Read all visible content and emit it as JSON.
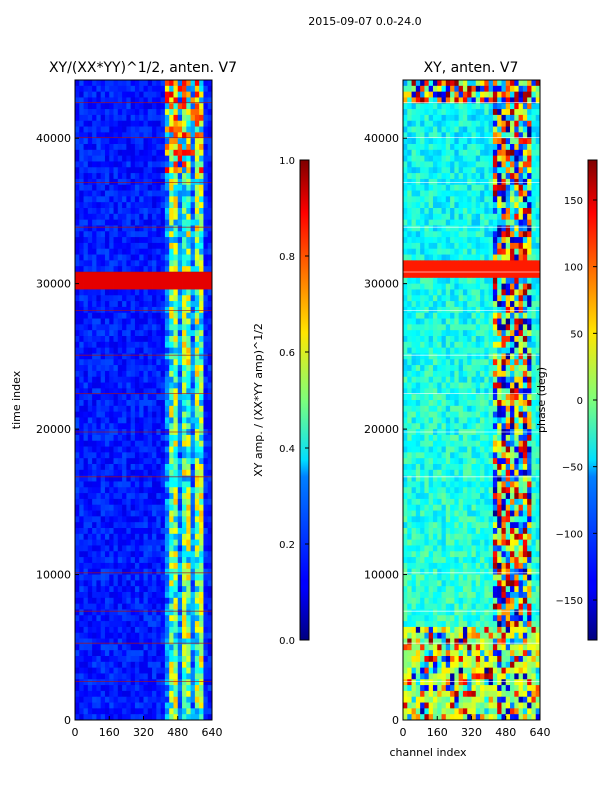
{
  "suptitle": "2015-09-07 0.0-24.0",
  "chart_data": [
    {
      "type": "heatmap",
      "title": "XY/(XX*YY)^1/2, anten. V7",
      "xlabel": "",
      "ylabel": "time index",
      "xlim": [
        0,
        640
      ],
      "ylim": [
        0,
        44000
      ],
      "xticks": [
        "0",
        "160",
        "320",
        "480",
        "640"
      ],
      "yticks": [
        "0",
        "10000",
        "20000",
        "30000",
        "40000"
      ],
      "colorbar": {
        "label": "XY amp. / (XX*YY amp)^1/2",
        "range": [
          0.0,
          1.0
        ],
        "ticks": [
          "0.0",
          "0.2",
          "0.4",
          "0.6",
          "0.8",
          "1.0"
        ],
        "colormap": "jet"
      }
    },
    {
      "type": "heatmap",
      "title": "XY, anten. V7",
      "xlabel": "channel index",
      "ylabel": "",
      "xlim": [
        0,
        640
      ],
      "ylim": [
        0,
        44000
      ],
      "xticks": [
        "0",
        "160",
        "320",
        "480",
        "640"
      ],
      "yticks": [
        "0",
        "10000",
        "20000",
        "30000",
        "40000"
      ],
      "colorbar": {
        "label": "phase (deg)",
        "range": [
          -180,
          180
        ],
        "ticks": [
          "−150",
          "−100",
          "−50",
          "0",
          "50",
          "100",
          "150"
        ],
        "colormap": "jet"
      }
    }
  ]
}
